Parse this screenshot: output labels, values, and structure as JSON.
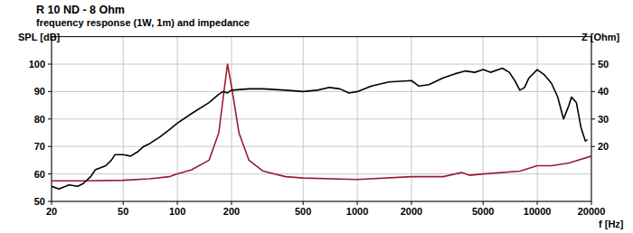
{
  "chart_data": {
    "type": "line",
    "title": "R 10 ND - 8 Ohm",
    "subtitle": "frequency response (1W, 1m) and impedance",
    "y_label": "SPL [dB]",
    "y2_label": "Z [Ohm]",
    "x_label": "f [Hz]",
    "log": "x",
    "grid": true,
    "xlim": [
      20,
      20000
    ],
    "xticks": [
      20,
      50,
      100,
      200,
      500,
      1000,
      2000,
      5000,
      10000,
      20000
    ],
    "ylim": [
      50,
      110
    ],
    "yticks": [
      50,
      60,
      70,
      80,
      90,
      100
    ],
    "y2lim": [
      0,
      60
    ],
    "y2ticks": [
      20,
      30,
      40,
      50
    ],
    "series": [
      {
        "color": "#000000",
        "x": [
          20,
          22,
          25,
          28,
          30,
          33,
          35,
          40,
          43,
          45,
          50,
          55,
          60,
          65,
          70,
          80,
          90,
          100,
          120,
          150,
          170,
          180,
          190,
          200,
          250,
          300,
          400,
          500,
          600,
          700,
          800,
          900,
          1000,
          1200,
          1500,
          2000,
          2200,
          2500,
          3000,
          3500,
          4000,
          4500,
          5000,
          5500,
          6400,
          7000,
          7500,
          8000,
          8500,
          9000,
          10000,
          11000,
          12000,
          13000,
          14000,
          15000,
          15500,
          16500,
          17500,
          18500,
          19000
        ],
        "values": [
          55.5,
          54.5,
          56,
          55.5,
          56.5,
          59,
          61.5,
          63,
          65,
          67,
          67,
          66.5,
          68,
          70,
          71,
          73.5,
          76,
          78.5,
          82,
          86,
          89,
          90,
          89.5,
          90.5,
          91,
          91,
          90.5,
          90,
          90.5,
          91.5,
          91,
          89.5,
          90,
          92,
          93.5,
          94,
          92,
          92.5,
          95,
          96.5,
          97.5,
          97,
          98,
          97,
          98.5,
          97,
          94,
          90.5,
          91.5,
          95,
          98,
          96,
          93,
          88,
          80,
          85,
          88,
          86,
          77,
          72,
          72.5
        ]
      },
      {
        "color": "#9b1b30",
        "axis": "y2",
        "x": [
          20,
          30,
          50,
          70,
          90,
          100,
          120,
          150,
          170,
          180,
          190,
          200,
          220,
          250,
          300,
          400,
          500,
          1000,
          2000,
          3000,
          3800,
          4200,
          5000,
          8000,
          10000,
          12000,
          15000,
          20000
        ],
        "values": [
          7.5,
          7.5,
          7.7,
          8.2,
          9,
          10,
          11.5,
          15,
          25,
          38,
          50,
          42,
          25,
          15,
          11,
          9,
          8.5,
          8,
          9,
          9,
          10.5,
          9.5,
          10,
          11,
          13,
          13,
          14,
          16.5
        ]
      }
    ]
  }
}
